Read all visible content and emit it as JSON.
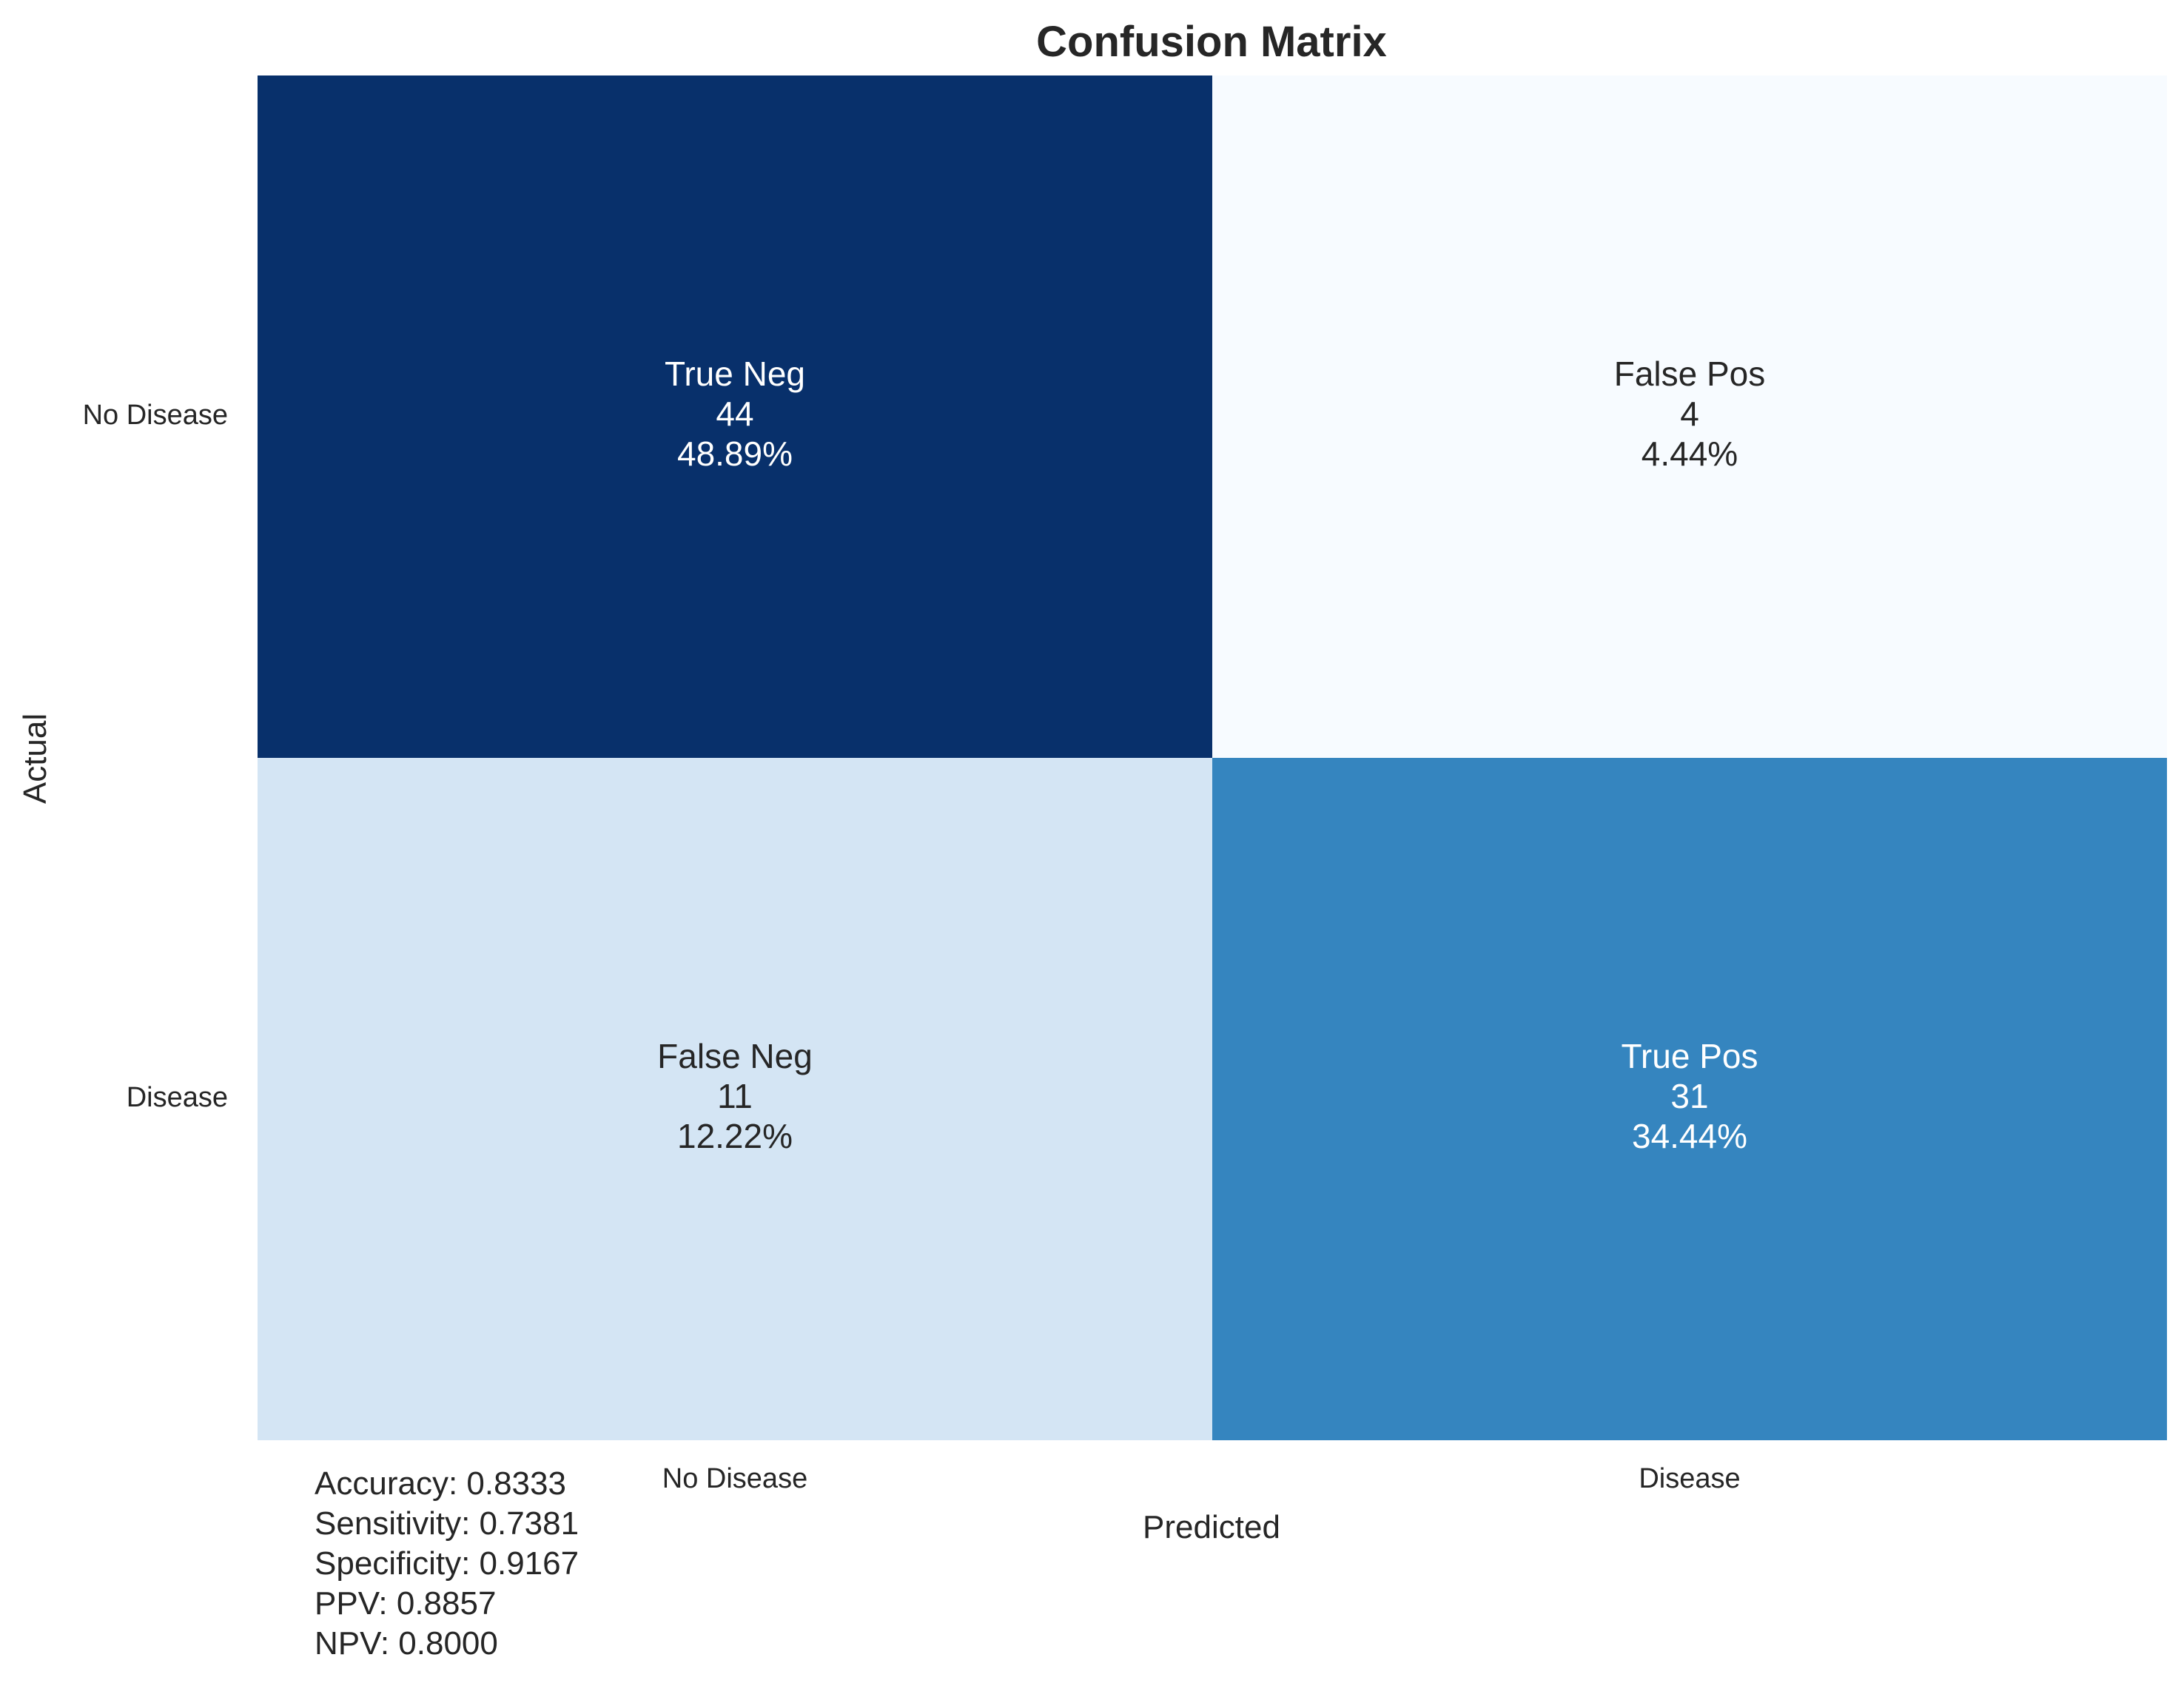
{
  "chart_data": {
    "type": "heatmap",
    "title": "Confusion Matrix",
    "xlabel": "Predicted",
    "ylabel": "Actual",
    "x_categories": [
      "No Disease",
      "Disease"
    ],
    "y_categories": [
      "No Disease",
      "Disease"
    ],
    "cells": [
      {
        "row": 0,
        "col": 0,
        "label": "True Neg",
        "count": 44,
        "percent": "48.89%"
      },
      {
        "row": 0,
        "col": 1,
        "label": "False Pos",
        "count": 4,
        "percent": "4.44%"
      },
      {
        "row": 1,
        "col": 0,
        "label": "False Neg",
        "count": 11,
        "percent": "12.22%"
      },
      {
        "row": 1,
        "col": 1,
        "label": "True Pos",
        "count": 31,
        "percent": "34.44%"
      }
    ],
    "colormap": "Blues",
    "color_range": [
      4,
      44
    ],
    "colorbar": false
  },
  "metrics": {
    "accuracy": "Accuracy: 0.8333",
    "sensitivity": "Sensitivity: 0.7381",
    "specificity": "Specificity: 0.9167",
    "ppv": "PPV: 0.8857",
    "npv": "NPV: 0.8000"
  }
}
